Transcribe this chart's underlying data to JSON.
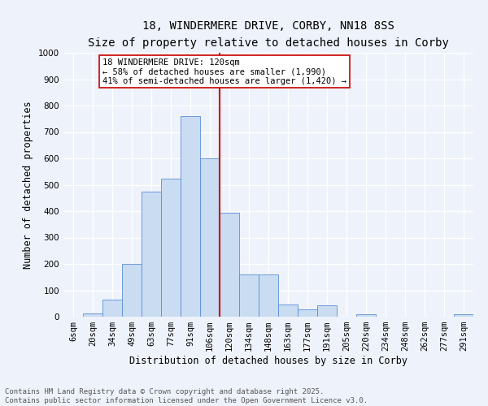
{
  "title1": "18, WINDERMERE DRIVE, CORBY, NN18 8SS",
  "title2": "Size of property relative to detached houses in Corby",
  "xlabel": "Distribution of detached houses by size in Corby",
  "ylabel": "Number of detached properties",
  "bar_labels": [
    "6sqm",
    "20sqm",
    "34sqm",
    "49sqm",
    "63sqm",
    "77sqm",
    "91sqm",
    "106sqm",
    "120sqm",
    "134sqm",
    "148sqm",
    "163sqm",
    "177sqm",
    "191sqm",
    "205sqm",
    "220sqm",
    "234sqm",
    "248sqm",
    "262sqm",
    "277sqm",
    "291sqm"
  ],
  "bar_values": [
    0,
    13,
    65,
    200,
    475,
    522,
    760,
    600,
    395,
    160,
    160,
    45,
    28,
    44,
    0,
    10,
    0,
    0,
    0,
    0,
    8
  ],
  "bar_color": "#c9dcf2",
  "bar_edge_color": "#5b8ed6",
  "bg_color": "#eef2fa",
  "grid_color": "#ffffff",
  "vline_idx": 7,
  "vline_color": "#cc0000",
  "annotation_text": "18 WINDERMERE DRIVE: 120sqm\n← 58% of detached houses are smaller (1,990)\n41% of semi-detached houses are larger (1,420) →",
  "annotation_box_color": "#ffffff",
  "annotation_box_edge": "#cc0000",
  "ylim": [
    0,
    1000
  ],
  "yticks": [
    0,
    100,
    200,
    300,
    400,
    500,
    600,
    700,
    800,
    900,
    1000
  ],
  "footer": "Contains HM Land Registry data © Crown copyright and database right 2025.\nContains public sector information licensed under the Open Government Licence v3.0.",
  "title1_fontsize": 10,
  "title2_fontsize": 9,
  "xlabel_fontsize": 8.5,
  "ylabel_fontsize": 8.5,
  "tick_fontsize": 7.5,
  "footer_fontsize": 6.5,
  "annot_fontsize": 7.5
}
